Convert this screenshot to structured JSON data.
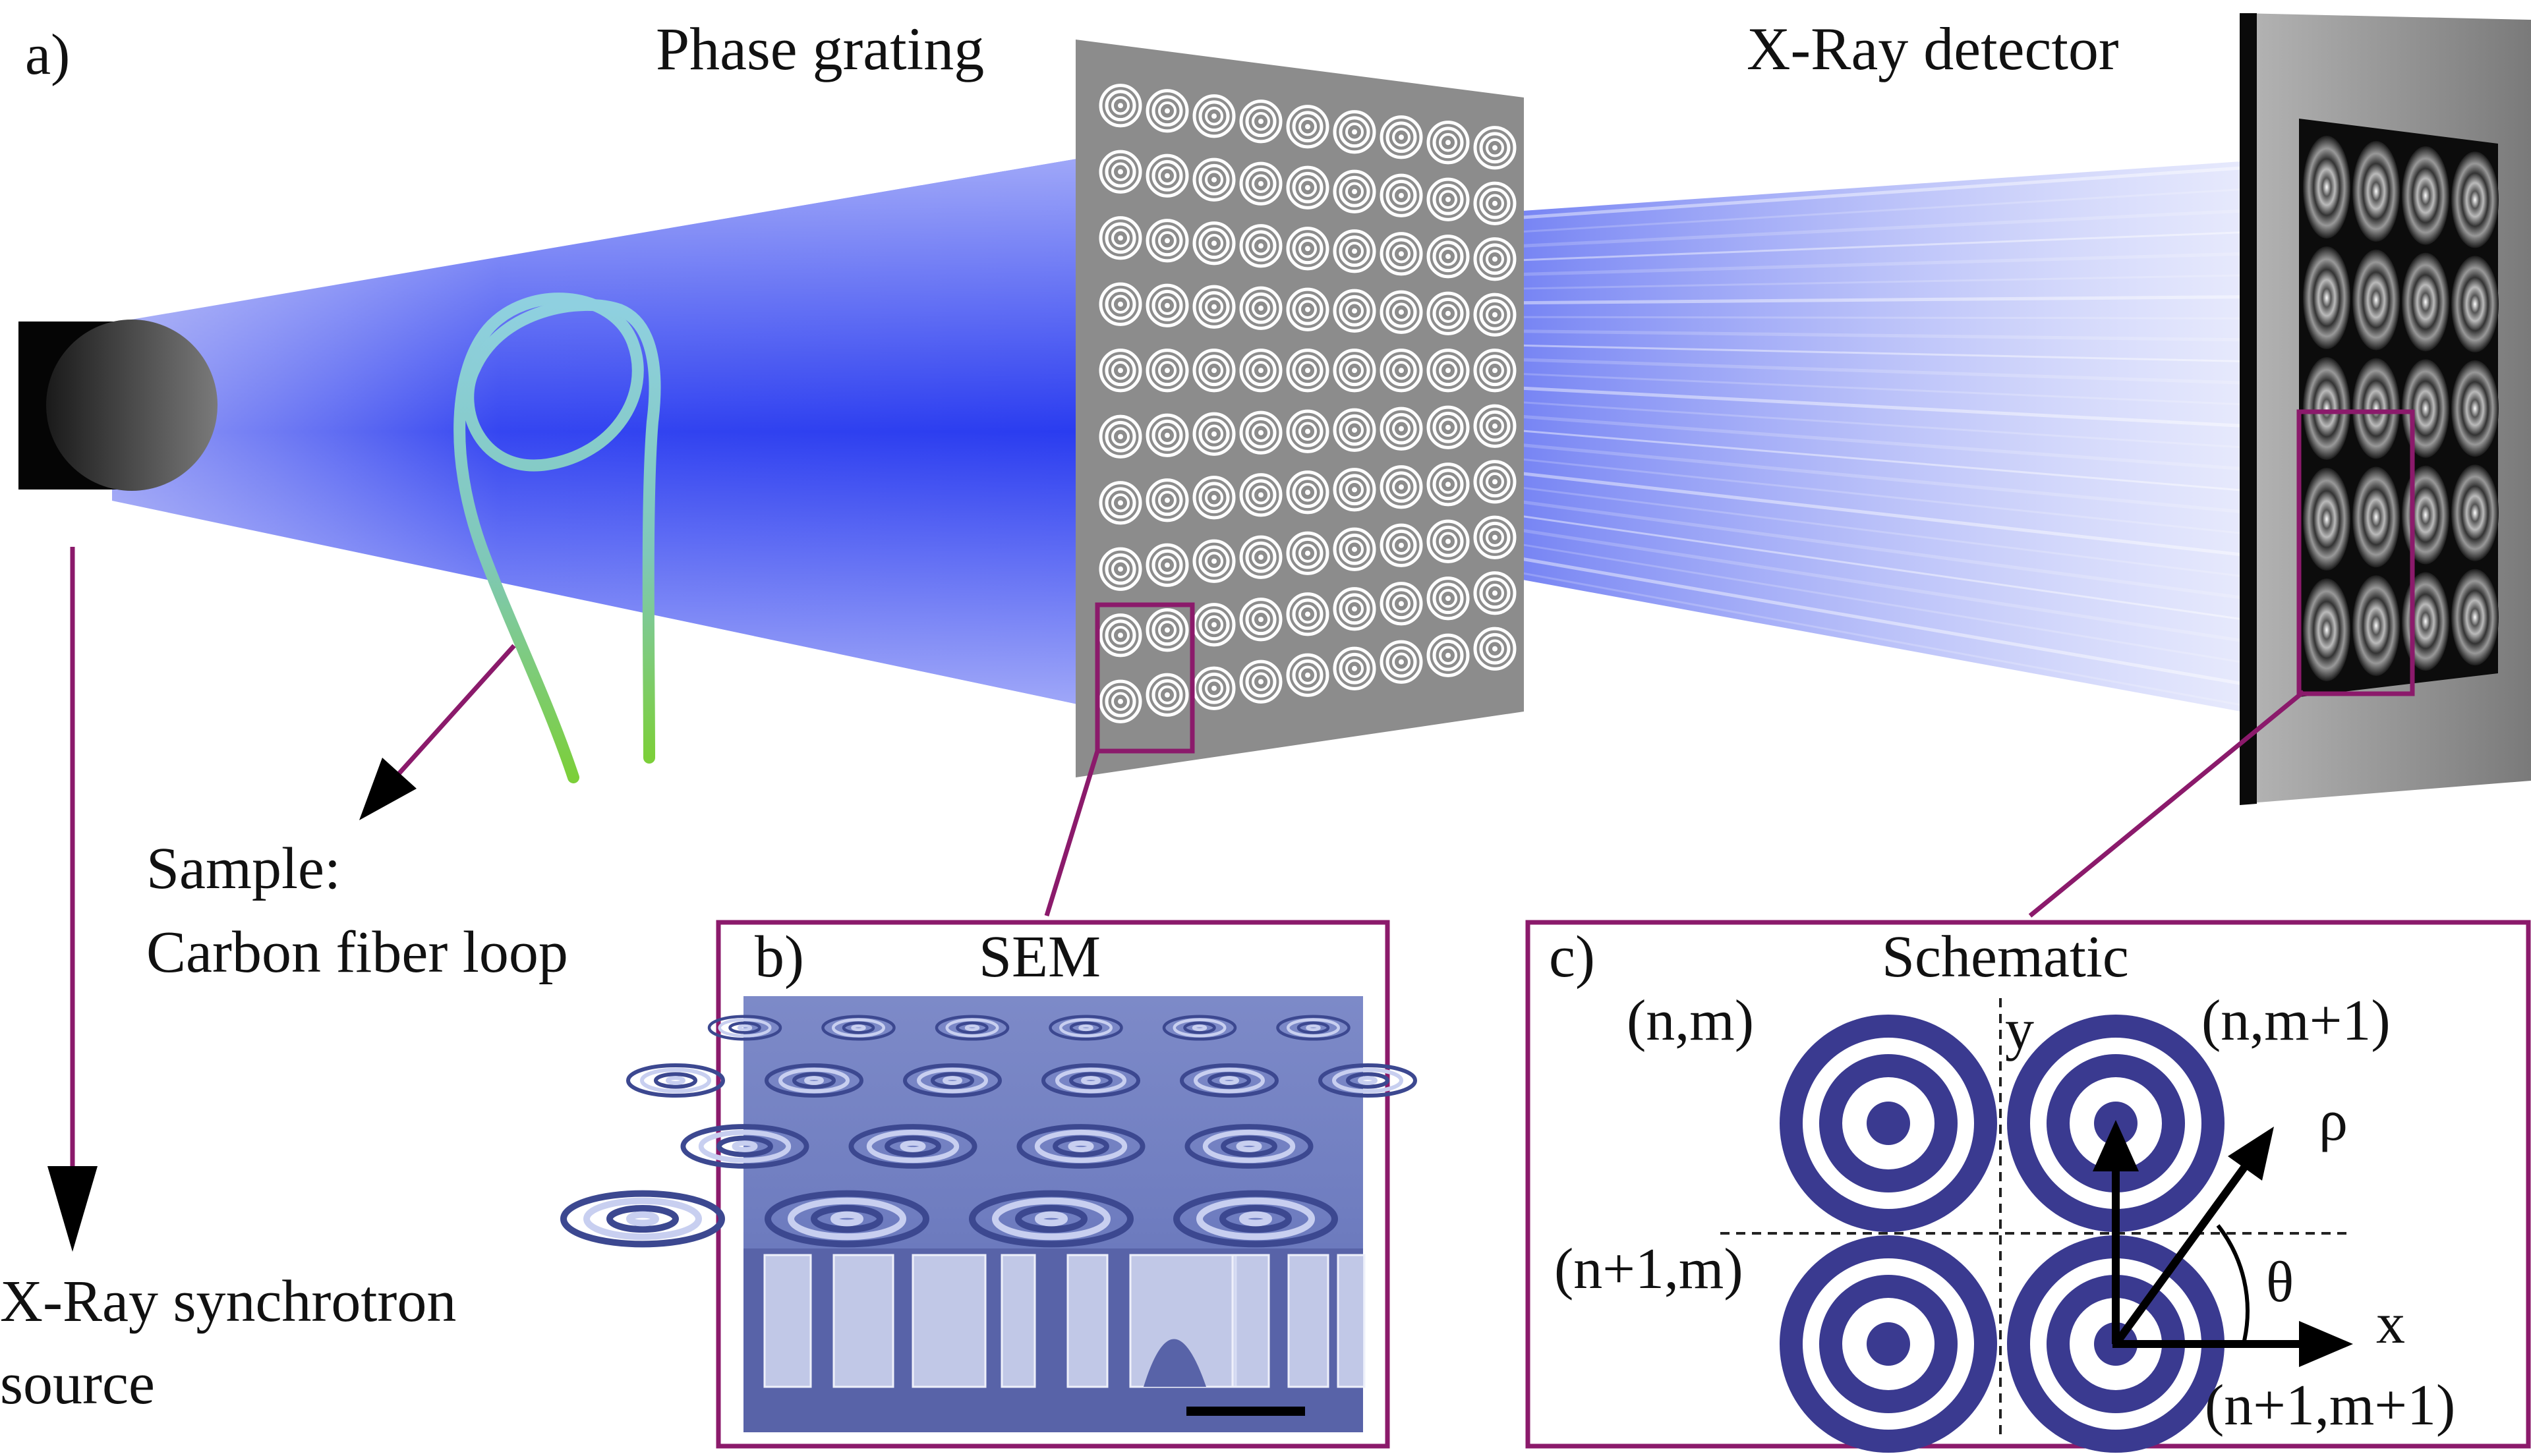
{
  "panel_a": {
    "label": "a)",
    "grating_title": "Phase grating",
    "detector_title": "X-Ray detector",
    "sample_label_line1": "Sample:",
    "sample_label_line2": "Carbon fiber loop",
    "source_label_line1": "X-Ray synchrotron",
    "source_label_line2": "source"
  },
  "panel_b": {
    "label": "b)",
    "title": "SEM"
  },
  "panel_c": {
    "label": "c)",
    "title": "Schematic",
    "cell_nm": "(n,m)",
    "cell_nm1": "(n,m+1)",
    "cell_n1m": "(n+1,m)",
    "cell_n1m1": "(n+1,m+1)",
    "axis_x": "x",
    "axis_y": "y",
    "rho": "ρ",
    "theta": "θ"
  },
  "colors": {
    "beam": "#2a3cf0",
    "frame": "#8b1a6b",
    "ring_blue": "#3a3a90",
    "grating": "#8c8c8c",
    "fiber_top": "#8fd0e0",
    "fiber_bottom": "#7ccf3a"
  }
}
